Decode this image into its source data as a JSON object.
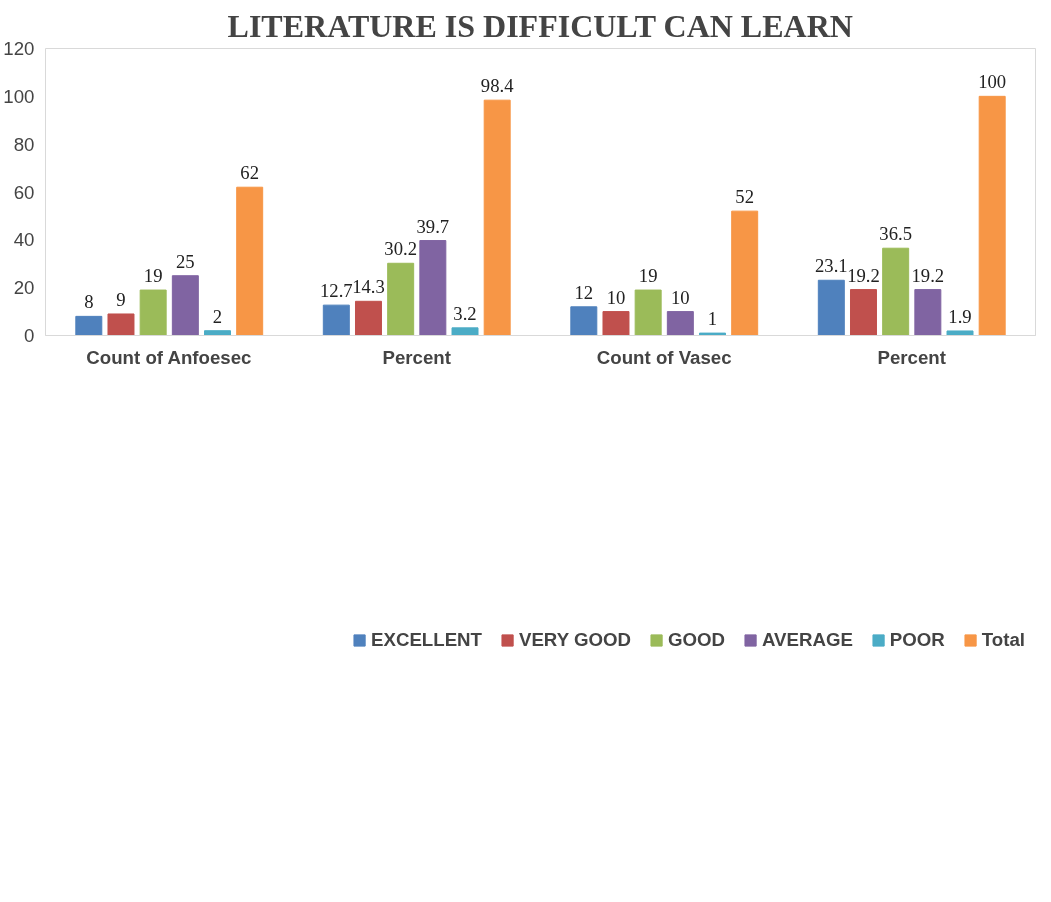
{
  "chart_data": {
    "type": "bar",
    "title": "LITERATURE IS DIFFICULT CAN LEARN",
    "categories": [
      "Count of Anfoesec",
      "Percent",
      "Count of Vasec",
      "Percent"
    ],
    "series": [
      {
        "name": "EXCELLENT",
        "color": "#4f81bd",
        "values": [
          8,
          12.7,
          12,
          23.1
        ]
      },
      {
        "name": "VERY GOOD",
        "color": "#c0504d",
        "values": [
          9,
          14.3,
          10,
          19.2
        ]
      },
      {
        "name": "GOOD",
        "color": "#9bbb59",
        "values": [
          19,
          30.2,
          19,
          36.5
        ]
      },
      {
        "name": "AVERAGE",
        "color": "#8064a2",
        "values": [
          25,
          39.7,
          10,
          19.2
        ]
      },
      {
        "name": "POOR",
        "color": "#4bacc6",
        "values": [
          2,
          3.2,
          1,
          1.9
        ]
      },
      {
        "name": "Total",
        "color": "#f79646",
        "values": [
          62,
          98.4,
          52,
          100
        ]
      }
    ],
    "ylim": [
      0,
      120
    ],
    "yticks": [
      0,
      20,
      40,
      60,
      80,
      100,
      120
    ],
    "grid": false,
    "legend": "bottom",
    "data_labels": true
  }
}
